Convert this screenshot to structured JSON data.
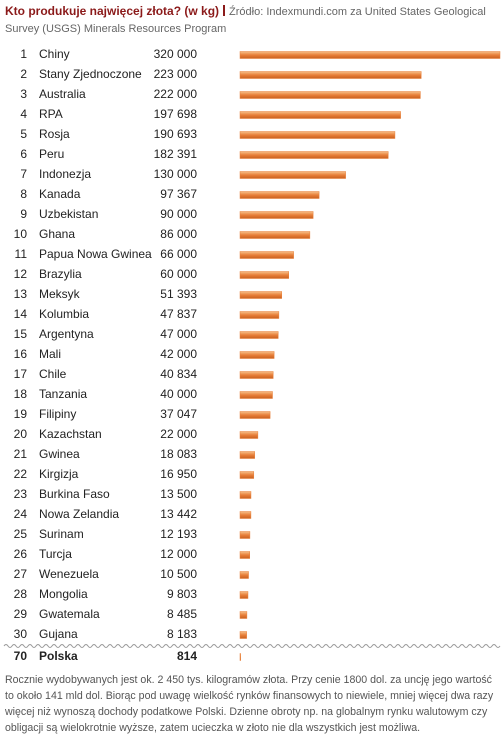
{
  "chart_data": {
    "type": "bar",
    "title": "Kto produkuje najwięcej złota? (w kg)",
    "source": "Źródło: Indexmundi.com za United States Geological Survey (USGS) Minerals Resources Program",
    "ranks": [
      1,
      2,
      3,
      4,
      5,
      6,
      7,
      8,
      9,
      10,
      11,
      12,
      13,
      14,
      15,
      16,
      17,
      18,
      19,
      20,
      21,
      22,
      23,
      24,
      25,
      26,
      27,
      28,
      29,
      30,
      70
    ],
    "categories": [
      "Chiny",
      "Stany Zjednoczone",
      "Australia",
      "RPA",
      "Rosja",
      "Peru",
      "Indonezja",
      "Kanada",
      "Uzbekistan",
      "Ghana",
      "Papua Nowa Gwinea",
      "Brazylia",
      "Meksyk",
      "Kolumbia",
      "Argentyna",
      "Mali",
      "Chile",
      "Tanzania",
      "Filipiny",
      "Kazachstan",
      "Gwinea",
      "Kirgizja",
      "Burkina Faso",
      "Nowa Zelandia",
      "Surinam",
      "Turcja",
      "Wenezuela",
      "Mongolia",
      "Gwatemala",
      "Gujana",
      "Polska"
    ],
    "values": [
      320000,
      223000,
      222000,
      197698,
      190693,
      182391,
      130000,
      97367,
      90000,
      86000,
      66000,
      60000,
      51393,
      47837,
      47000,
      42000,
      40834,
      40000,
      37047,
      22000,
      18083,
      16950,
      13500,
      13442,
      12193,
      12000,
      10500,
      9803,
      8485,
      8183,
      814
    ],
    "value_labels": [
      "320 000",
      "223 000",
      "222 000",
      "197 698",
      "190 693",
      "182 391",
      "130 000",
      "97 367",
      "90 000",
      "86 000",
      "66 000",
      "60 000",
      "51 393",
      "47 837",
      "47 000",
      "42 000",
      "40 834",
      "40 000",
      "37 047",
      "22 000",
      "18 083",
      "16 950",
      "13 500",
      "13 442",
      "12 193",
      "12 000",
      "10 500",
      "9 803",
      "8 485",
      "8 183",
      "814"
    ],
    "color": "#e8803a",
    "note": "Rocznie wydobywanych jest ok. 2 450 tys. kilogramów złota. Przy cenie 1800 dol. za uncję jego wartość to około 141 mld dol. Biorąc pod uwagę wielkość rynków finansowych to niewiele, mniej więcej dwa razy więcej niż wynoszą dochody podatkowe Polski. Dzienne obroty np. na globalnym rynku walutowym czy obligacji są wielokrotnie wyższe, zatem ucieczka w złoto nie dla wszystkich jest możliwa."
  }
}
